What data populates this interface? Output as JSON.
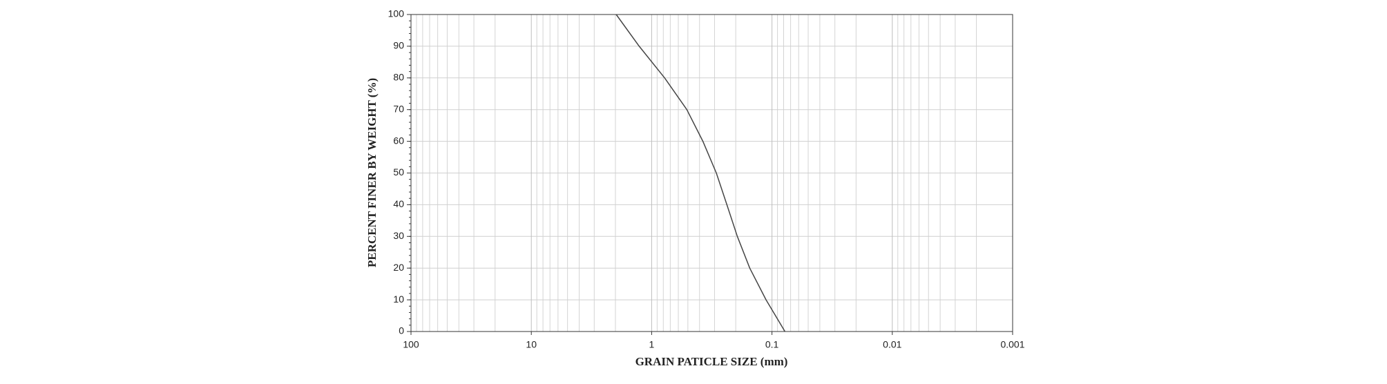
{
  "chart_data": {
    "type": "line",
    "x_label": "GRAIN PATICLE SIZE (mm)",
    "y_label": "PERCENT FINER BY WEIGHT (%)",
    "x": [
      1.97,
      1.27,
      0.78,
      0.51,
      0.375,
      0.29,
      0.237,
      0.194,
      0.153,
      0.112,
      0.078
    ],
    "values": [
      100,
      90,
      80,
      70,
      60,
      50,
      40,
      30,
      20,
      10,
      0
    ],
    "color": "#444444",
    "x_log": true,
    "xlim": [
      100,
      0.001
    ],
    "xticks": [
      100,
      10,
      1,
      0.1,
      0.01,
      0.001
    ],
    "ylim": [
      0,
      100
    ],
    "yticks": [
      0,
      10,
      20,
      30,
      40,
      50,
      60,
      70,
      80,
      90,
      100
    ],
    "grid": true
  }
}
